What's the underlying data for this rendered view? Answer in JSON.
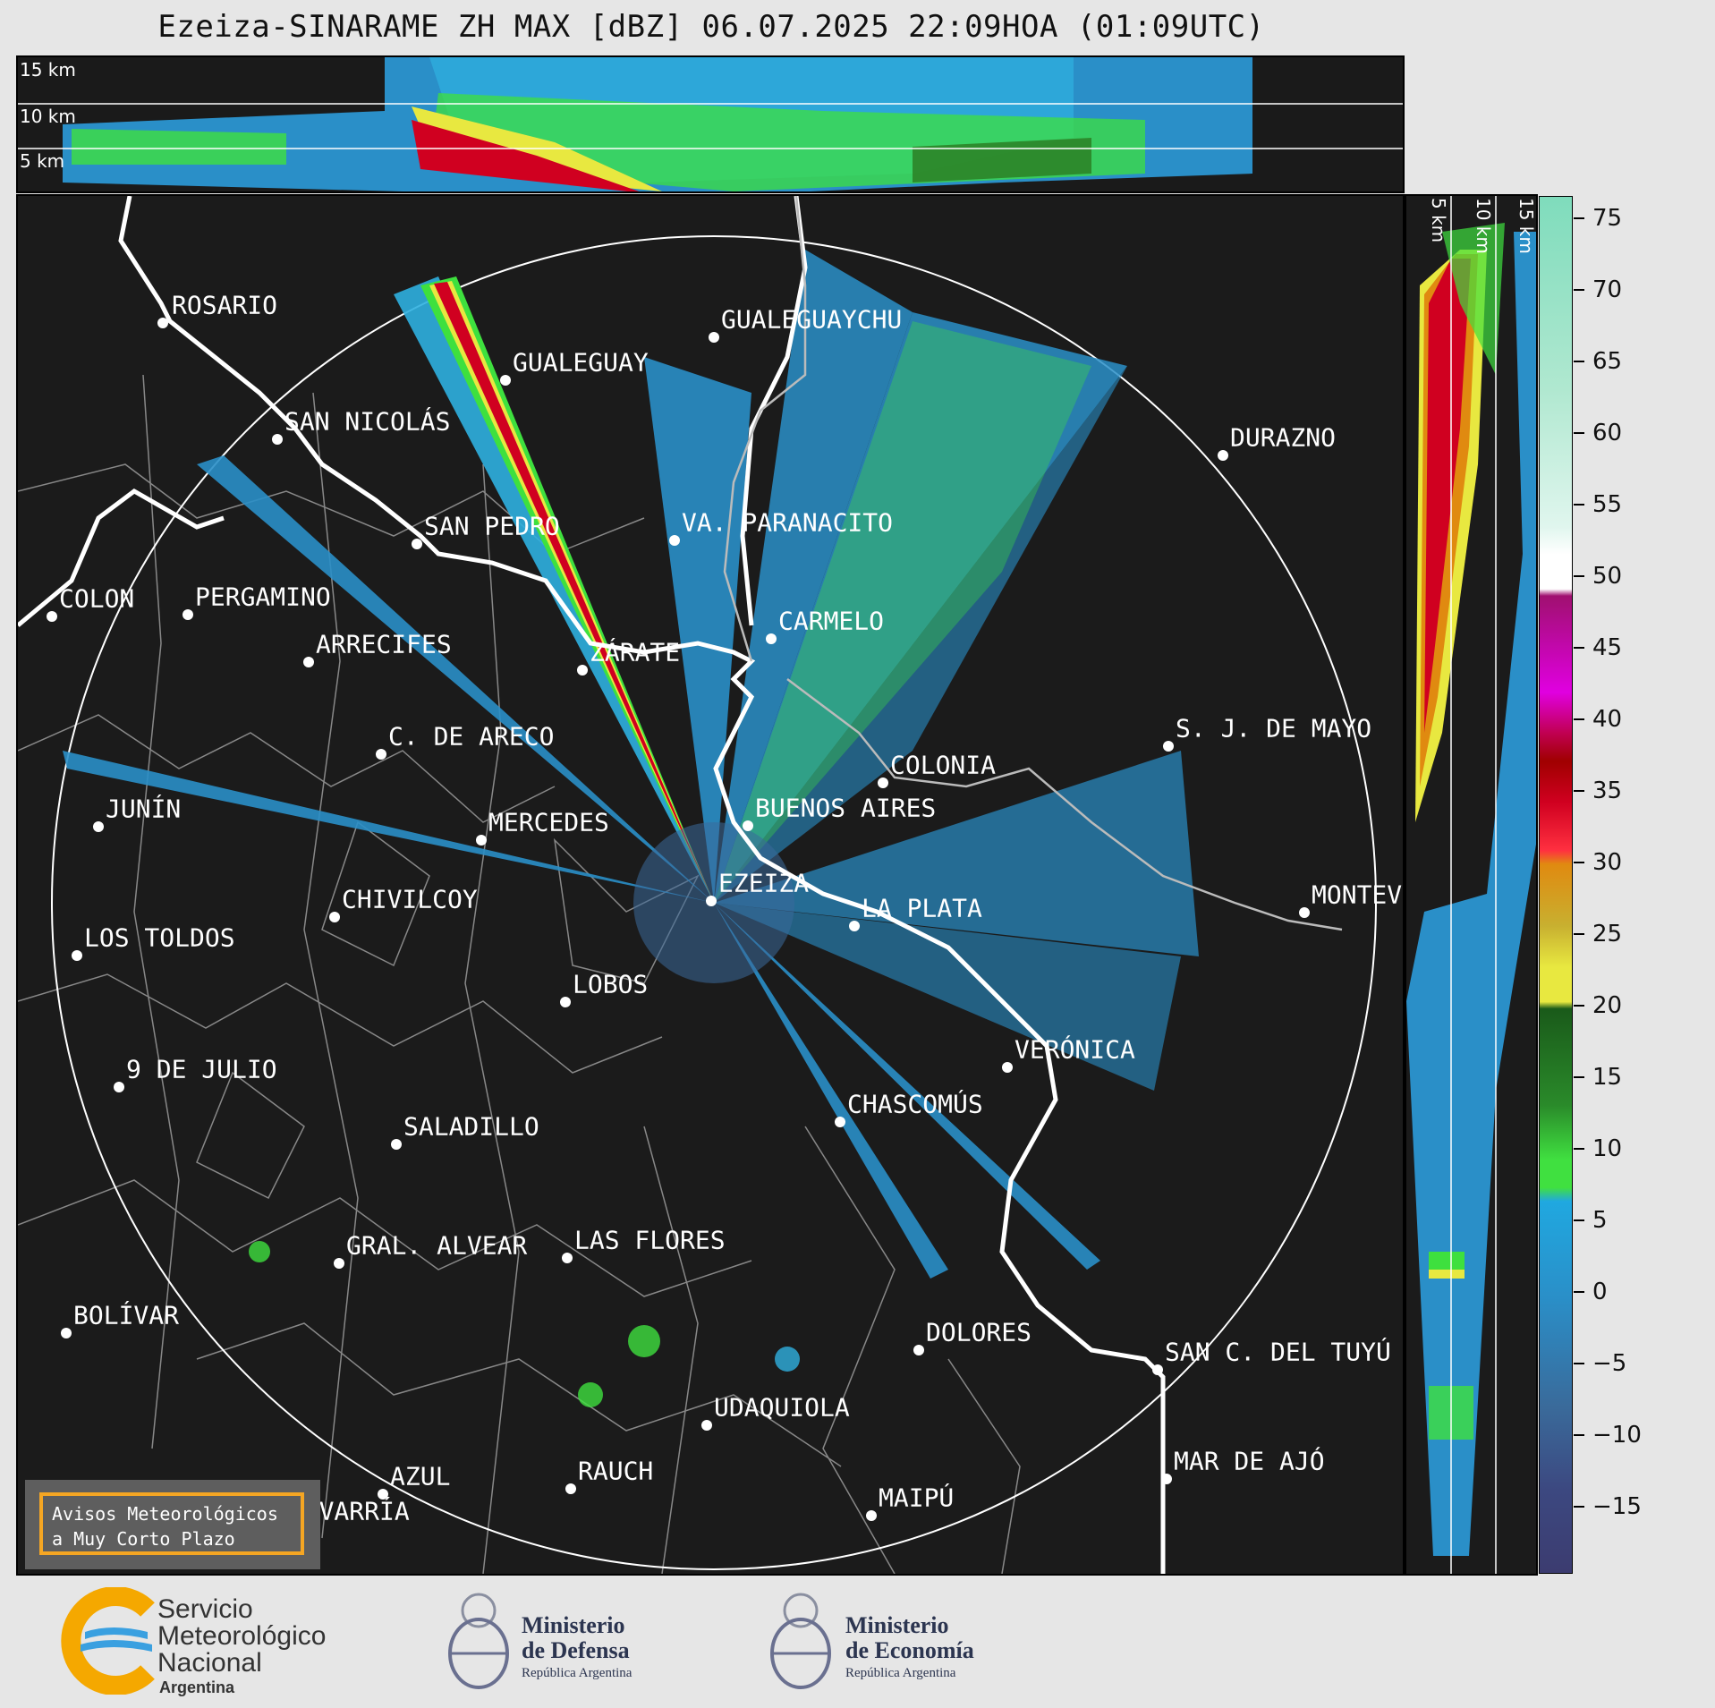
{
  "title": "Ezeiza-SINARAME ZH MAX [dBZ] 06.07.2025 22:09HOA (01:09UTC)",
  "top_panel": {
    "height_labels": [
      "15 km",
      "10 km",
      "5 km"
    ]
  },
  "side_panel": {
    "height_labels": [
      "5 km",
      "10 km",
      "15 km"
    ]
  },
  "colorbar": {
    "ticks": [
      "75",
      "70",
      "65",
      "60",
      "55",
      "50",
      "45",
      "40",
      "35",
      "30",
      "25",
      "20",
      "15",
      "10",
      "5",
      "0",
      "−5",
      "−10",
      "−15"
    ],
    "colors": {
      "sea_green": "#7fdcbc",
      "white": "#ffffff",
      "magenta": "#e000e0",
      "red": "#d00020",
      "orange": "#e08a10",
      "yellow": "#e8e840",
      "dark_green": "#2a7a20",
      "light_green": "#40e040",
      "light_blue": "#20a8e0",
      "steel_blue": "#3a6a9a",
      "navy": "#3c3c70"
    }
  },
  "map": {
    "cities": [
      {
        "name": "ROSARIO"
      },
      {
        "name": "GUALEGUAYCHU"
      },
      {
        "name": "GUALEGUAY"
      },
      {
        "name": "SAN NICOLÁS"
      },
      {
        "name": "DURAZNO"
      },
      {
        "name": "SAN PEDRO"
      },
      {
        "name": "VA. PARANACITO"
      },
      {
        "name": "COLON"
      },
      {
        "name": "PERGAMINO"
      },
      {
        "name": "CARMELO"
      },
      {
        "name": "ARRECIFES"
      },
      {
        "name": "ZÁRATE"
      },
      {
        "name": "S. J. DE MAYO"
      },
      {
        "name": "C. DE ARECO"
      },
      {
        "name": "COLONIA"
      },
      {
        "name": "JUNÍN"
      },
      {
        "name": "BUENOS AIRES"
      },
      {
        "name": "MERCEDES"
      },
      {
        "name": "MONTEV"
      },
      {
        "name": "EZEIZA"
      },
      {
        "name": "CHIVILCOY"
      },
      {
        "name": "LA PLATA"
      },
      {
        "name": "LOS TOLDOS"
      },
      {
        "name": "LOBOS"
      },
      {
        "name": "VERÓNICA"
      },
      {
        "name": "9 DE JULIO"
      },
      {
        "name": "CHASCOMÚS"
      },
      {
        "name": "SALADILLO"
      },
      {
        "name": "GRAL. ALVEAR"
      },
      {
        "name": "LAS FLORES"
      },
      {
        "name": "BOLÍVAR"
      },
      {
        "name": "DOLORES"
      },
      {
        "name": "SAN C. DEL TUYÚ"
      },
      {
        "name": "UDAQUIOLA"
      },
      {
        "name": "MAR DE AJÓ"
      },
      {
        "name": "AZUL"
      },
      {
        "name": "RAUCH"
      },
      {
        "name": "MAIPÚ"
      },
      {
        "name": "OLAVARRÍA"
      }
    ],
    "avisos_line1": "Avisos Meteorológicos",
    "avisos_line2": "a Muy Corto Plazo"
  },
  "footer": {
    "smn_line1": "Servicio",
    "smn_line2": "Meteorológico",
    "smn_line3": "Nacional",
    "smn_line4": "Argentina",
    "defensa_line1": "Ministerio",
    "defensa_line2": "de Defensa",
    "defensa_line3": "República Argentina",
    "economia_line1": "Ministerio",
    "economia_line2": "de Economía",
    "economia_line3": "República Argentina"
  }
}
